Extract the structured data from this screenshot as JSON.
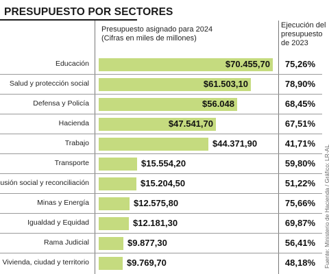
{
  "title": "PRESUPUESTO POR SECTORES",
  "column_headers": {
    "budget": [
      "Presupuesto asignado para 2024",
      "(Cifras en miles de millones)"
    ],
    "execution": [
      "Ejecución del",
      "presupuesto",
      "de 2023"
    ]
  },
  "source": "Fuente: Ministerio de Hacienda / Gráfico: LR-AL",
  "colors": {
    "bar": "#c5db7f",
    "separator": "#999999",
    "title_rule": "#1a1a1a"
  },
  "chart_data": {
    "type": "bar",
    "orientation": "horizontal",
    "categories": [
      "Educación",
      "Salud y protección social",
      "Defensa y Policía",
      "Hacienda",
      "Trabajo",
      "Transporte",
      "Inclusión social y reconciliación",
      "Minas y Energía",
      "Igualdad y Equidad",
      "Rama Judicial",
      "Vivienda, ciudad y territorio"
    ],
    "values": [
      70455.7,
      61503.1,
      56048,
      47541.7,
      44371.9,
      15554.2,
      15204.5,
      12575.8,
      12181.3,
      9877.3,
      9769.7
    ],
    "value_labels": [
      "$70.455,70",
      "$61.503,10",
      "$56.048",
      "$47.541,70",
      "$44.371,90",
      "$15.554,20",
      "$15.204,50",
      "$12.575,80",
      "$12.181,30",
      "$9.877,30",
      "$9.769,70"
    ],
    "execution_2023": [
      "75,26%",
      "78,90%",
      "68,45%",
      "67,51%",
      "41,71%",
      "59,80%",
      "51,22%",
      "75,66%",
      "69,87%",
      "56,41%",
      "48,18%"
    ],
    "xlim": [
      0,
      70455.7
    ],
    "grid": false,
    "legend": "none"
  }
}
